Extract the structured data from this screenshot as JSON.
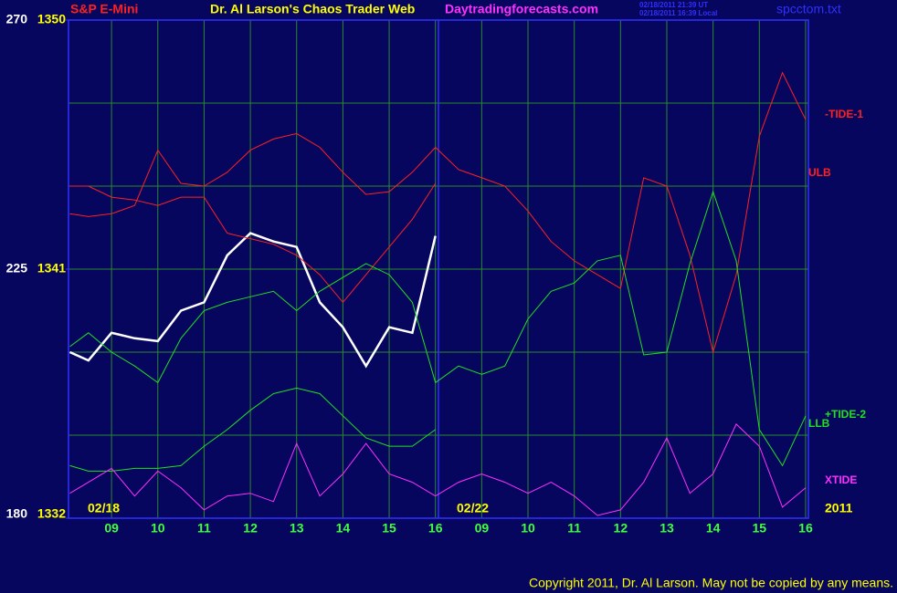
{
  "chart_data": {
    "type": "line",
    "title": "Dr. Al Larson's Chaos Trader Web",
    "site": "Daytradingforecasts.com",
    "timestamps": [
      "02/18/2011 21:39 UT",
      "02/18/2011 16:39 Local"
    ],
    "file": "spcctom.txt",
    "date_labels": [
      "02/18",
      "02/22",
      "2011"
    ],
    "copyright": "Copyright 2011, Dr. Al Larson. May not be copied by any means.",
    "xlim": [
      -0.93,
      15.06
    ],
    "xticks": [
      {
        "value": 0,
        "label": "09"
      },
      {
        "value": 1,
        "label": "10"
      },
      {
        "value": 2,
        "label": "11"
      },
      {
        "value": 3,
        "label": "12"
      },
      {
        "value": 4,
        "label": "13"
      },
      {
        "value": 5,
        "label": "14"
      },
      {
        "value": 6,
        "label": "15"
      },
      {
        "value": 7,
        "label": "16"
      },
      {
        "value": 8,
        "label": "09"
      },
      {
        "value": 9,
        "label": "10"
      },
      {
        "value": 10,
        "label": "11"
      },
      {
        "value": 11,
        "label": "12"
      },
      {
        "value": 12,
        "label": "13"
      },
      {
        "value": 13,
        "label": "14"
      },
      {
        "value": 14,
        "label": "15"
      },
      {
        "value": 15,
        "label": "16"
      }
    ],
    "ylim": [
      1332,
      1350
    ],
    "yticks": [
      1332,
      1341,
      1350
    ],
    "y2lim": [
      180,
      270
    ],
    "y2ticks": [
      180,
      225,
      270
    ],
    "grid": true,
    "x": [
      -0.9,
      -0.5,
      0,
      0.5,
      1,
      1.5,
      2,
      2.5,
      3,
      3.5,
      4,
      4.5,
      5,
      5.5,
      6,
      6.5,
      7,
      7.5,
      8,
      8.5,
      9,
      9.5,
      10,
      10.5,
      11,
      11.5,
      12,
      12.5,
      13,
      13.5,
      14,
      14.5,
      15
    ],
    "series": [
      {
        "name": "S&P E-Mini",
        "color": "#ff2020",
        "values": [
          1338.0,
          1337.7,
          1338.7,
          1338.5,
          1338.4,
          1339.5,
          1339.8,
          1341.5,
          1342.3,
          1342.0,
          1341.8,
          1339.8,
          1338.9,
          1337.5,
          1338.9,
          1338.7,
          1342.2,
          null,
          null,
          null,
          null,
          null,
          null,
          null,
          null,
          null,
          null,
          null,
          null,
          null,
          null,
          null,
          null
        ]
      },
      {
        "name": "-TIDE-1",
        "color": "#ff2020",
        "values": [
          1344.0,
          1344.0,
          1343.6,
          1343.5,
          1343.3,
          1343.6,
          1343.6,
          1342.3,
          1342.1,
          1341.9,
          1341.5,
          1340.8,
          1339.8,
          1340.8,
          1341.8,
          1342.8,
          1344.1,
          null,
          null,
          null,
          null,
          null,
          null,
          null,
          1340.3,
          1344.3,
          1344.0,
          1341.5,
          1338.0,
          1340.8,
          1345.8,
          1348.1,
          1346.4
        ]
      },
      {
        "name": "ULB",
        "color": "#ff2020",
        "values": [
          1343.0,
          1342.9,
          1343.0,
          1343.3,
          1345.3,
          1344.1,
          1344.0,
          1344.5,
          1345.3,
          1345.7,
          1345.9,
          1345.4,
          1344.5,
          1343.7,
          1343.8,
          1344.5,
          1345.4,
          1344.6,
          1344.3,
          1344.0,
          1343.1,
          1342.0,
          1341.3,
          1340.8,
          1340.3,
          null,
          null,
          null,
          null,
          null,
          null,
          null,
          null
        ]
      },
      {
        "name": "+TIDE-2",
        "color": "#20e020",
        "values": [
          1338.2,
          1338.7,
          1338.0,
          1337.5,
          1336.9,
          1338.5,
          1339.5,
          1339.8,
          1340.0,
          1340.2,
          1339.5,
          1340.2,
          1340.7,
          1341.2,
          1340.8,
          1339.8,
          1336.9,
          1337.5,
          1337.2,
          1337.5,
          1339.2,
          1340.2,
          1340.5,
          1341.3,
          1341.5,
          1337.9,
          1338.0,
          1341.2,
          1343.8,
          1341.3,
          1335.2,
          1333.9,
          1335.7
        ]
      },
      {
        "name": "LLB",
        "color": "#20e020",
        "values": [
          1333.9,
          1333.7,
          1333.7,
          1333.8,
          1333.8,
          1333.9,
          1334.6,
          1335.2,
          1335.9,
          1336.5,
          1336.7,
          1336.5,
          1335.7,
          1334.9,
          1334.6,
          1334.6,
          1335.2,
          null,
          null,
          null,
          null,
          null,
          null,
          null,
          null,
          null,
          null,
          null,
          null,
          null,
          null,
          null,
          null
        ]
      },
      {
        "name": "XTIDE",
        "color": "#ff30ff",
        "values": [
          1332.9,
          1333.3,
          1333.8,
          1332.8,
          1333.7,
          1333.1,
          1332.3,
          1332.8,
          1332.9,
          1332.6,
          1334.7,
          1332.8,
          1333.6,
          1334.7,
          1333.6,
          1333.3,
          1332.8,
          1333.3,
          1333.6,
          1333.3,
          1332.9,
          1333.3,
          1332.8,
          1332.1,
          1332.3,
          1333.3,
          1334.9,
          1332.9,
          1333.6,
          1335.4,
          1334.6,
          1332.4,
          1333.1
        ]
      }
    ]
  }
}
